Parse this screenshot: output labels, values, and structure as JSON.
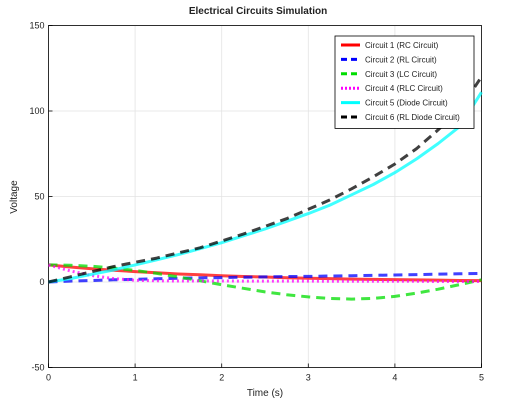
{
  "chart_data": {
    "type": "line",
    "title": "Electrical Circuits Simulation",
    "xlabel": "Time (s)",
    "ylabel": "Voltage",
    "xlim": [
      0,
      5
    ],
    "ylim": [
      -50,
      150
    ],
    "xticks": [
      0,
      1,
      2,
      3,
      4,
      5
    ],
    "yticks": [
      -50,
      0,
      50,
      100,
      150
    ],
    "grid": true,
    "legend_position": "top-right",
    "x": [
      0,
      0.25,
      0.5,
      0.75,
      1.0,
      1.25,
      1.5,
      1.75,
      2.0,
      2.25,
      2.5,
      2.75,
      3.0,
      3.25,
      3.5,
      3.75,
      4.0,
      4.25,
      4.5,
      4.75,
      5.0
    ],
    "series": [
      {
        "name": "Circuit 1 (RC Circuit)",
        "color": "#ff0000",
        "style": "solid",
        "values": [
          10,
          8.8,
          7.8,
          6.9,
          6.1,
          5.4,
          4.7,
          4.2,
          3.7,
          3.2,
          2.9,
          2.5,
          2.2,
          2.0,
          1.7,
          1.5,
          1.4,
          1.2,
          1.1,
          0.9,
          0.8
        ]
      },
      {
        "name": "Circuit 2 (RL Circuit)",
        "color": "#0000ff",
        "style": "dashed",
        "values": [
          0,
          0.5,
          0.9,
          1.3,
          1.6,
          1.9,
          2.2,
          2.4,
          2.6,
          2.8,
          3.0,
          3.2,
          3.3,
          3.5,
          3.7,
          3.9,
          4.1,
          4.3,
          4.6,
          4.8,
          5.0
        ]
      },
      {
        "name": "Circuit 3 (LC Circuit)",
        "color": "#00dd00",
        "style": "dashed",
        "values": [
          10,
          9.8,
          9.2,
          8.2,
          6.8,
          5.0,
          2.9,
          0.7,
          -1.6,
          -3.7,
          -5.8,
          -7.4,
          -8.7,
          -9.6,
          -10.0,
          -9.6,
          -8.4,
          -6.5,
          -4.2,
          -1.5,
          1.3
        ]
      },
      {
        "name": "Circuit 4 (RLC Circuit)",
        "color": "#ff00ff",
        "style": "dotted",
        "values": [
          10,
          6.5,
          3.8,
          2.0,
          1.0,
          0.7,
          0.6,
          0.6,
          0.6,
          0.5,
          0.5,
          0.5,
          0.5,
          0.4,
          0.4,
          0.4,
          0.4,
          0.4,
          0.3,
          0.3,
          0.3
        ]
      },
      {
        "name": "Circuit 5 (Diode Circuit)",
        "color": "#00ffff",
        "style": "solid",
        "values": [
          0,
          2.0,
          4.5,
          7.0,
          10.0,
          13.0,
          16.0,
          19.5,
          23.0,
          27.0,
          31.0,
          35.5,
          40.0,
          45.0,
          51.0,
          57.0,
          64.0,
          72.0,
          81.0,
          91.0,
          111.0
        ]
      },
      {
        "name": "Circuit 6 (RL Diode Circuit)",
        "color": "#000000",
        "style": "dashed",
        "values": [
          0,
          3.0,
          6.0,
          9.0,
          11.5,
          14.0,
          17.0,
          20.0,
          24.0,
          28.0,
          32.5,
          37.0,
          42.5,
          48.0,
          54.5,
          61.5,
          69.0,
          78.0,
          89.0,
          101.0,
          120.0
        ]
      }
    ]
  }
}
